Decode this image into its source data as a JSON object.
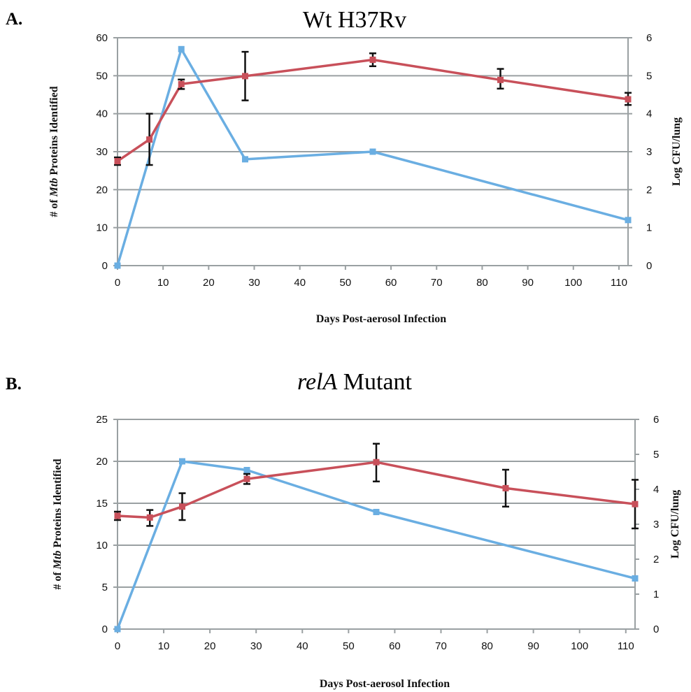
{
  "panels": [
    {
      "label": "A.",
      "title_italic": "",
      "title_rest": "Wt H37Rv"
    },
    {
      "label": "B.",
      "title_italic": "relA",
      "title_rest": " Mutant"
    }
  ],
  "chart_data": [
    {
      "type": "line",
      "title": "Wt H37Rv",
      "xlabel": "Days Post-aerosol Infection",
      "ylabel": "# of Mtb Proteins Identified",
      "ylabel_prefix": "# of ",
      "ylabel_italic": "Mtb",
      "ylabel_suffix": " Proteins Identified",
      "y2label": "Log CFU/lung",
      "xlim": [
        0,
        112
      ],
      "xticks": [
        0,
        10,
        20,
        30,
        40,
        50,
        60,
        70,
        80,
        90,
        100,
        110
      ],
      "ylim": [
        0,
        60
      ],
      "yticks": [
        0,
        10,
        20,
        30,
        40,
        50,
        60
      ],
      "y2lim": [
        0,
        6
      ],
      "y2ticks": [
        0,
        1,
        2,
        3,
        4,
        5,
        6
      ],
      "grid": true,
      "series": [
        {
          "axis": "left",
          "color": "#c8505a",
          "x": [
            0,
            7,
            14,
            28,
            56,
            84,
            112
          ],
          "y": [
            27.5,
            33.2,
            47.8,
            49.9,
            54.2,
            48.9,
            43.8
          ],
          "err_low": [
            1.0,
            6.7,
            1.3,
            6.4,
            1.7,
            2.3,
            1.5
          ],
          "err_high": [
            1.0,
            6.8,
            1.2,
            6.4,
            1.7,
            2.9,
            1.7
          ]
        },
        {
          "axis": "right",
          "color": "#6aaee2",
          "x": [
            0,
            14,
            28,
            56,
            112
          ],
          "y": [
            0,
            5.7,
            2.8,
            3.0,
            1.2
          ]
        }
      ]
    },
    {
      "type": "line",
      "title": "relA Mutant",
      "xlabel": "Days Post-aerosol Infection",
      "ylabel": "# of Mtb Proteins Identified",
      "ylabel_prefix": "# of ",
      "ylabel_italic": "Mtb",
      "ylabel_suffix": " Proteins Identified",
      "y2label": "Log CFU/lung",
      "xlim": [
        0,
        112
      ],
      "xticks": [
        0,
        10,
        20,
        30,
        40,
        50,
        60,
        70,
        80,
        90,
        100,
        110
      ],
      "ylim": [
        0,
        25
      ],
      "yticks": [
        0,
        5,
        10,
        15,
        20,
        25
      ],
      "y2lim": [
        0,
        6
      ],
      "y2ticks": [
        0,
        1,
        2,
        3,
        4,
        5,
        6
      ],
      "grid": true,
      "series": [
        {
          "axis": "left",
          "color": "#c8505a",
          "x": [
            0,
            7,
            14,
            28,
            56,
            84,
            112
          ],
          "y": [
            13.5,
            13.3,
            14.6,
            17.9,
            19.9,
            16.8,
            14.9
          ],
          "err_low": [
            0.5,
            1.0,
            1.6,
            0.6,
            2.3,
            2.2,
            2.9
          ],
          "err_high": [
            0.5,
            0.9,
            1.6,
            0.6,
            2.2,
            2.2,
            2.9
          ]
        },
        {
          "axis": "right",
          "color": "#6aaee2",
          "x": [
            0,
            14,
            28,
            56,
            112
          ],
          "y": [
            0,
            4.8,
            4.55,
            3.35,
            1.45
          ]
        }
      ]
    }
  ]
}
